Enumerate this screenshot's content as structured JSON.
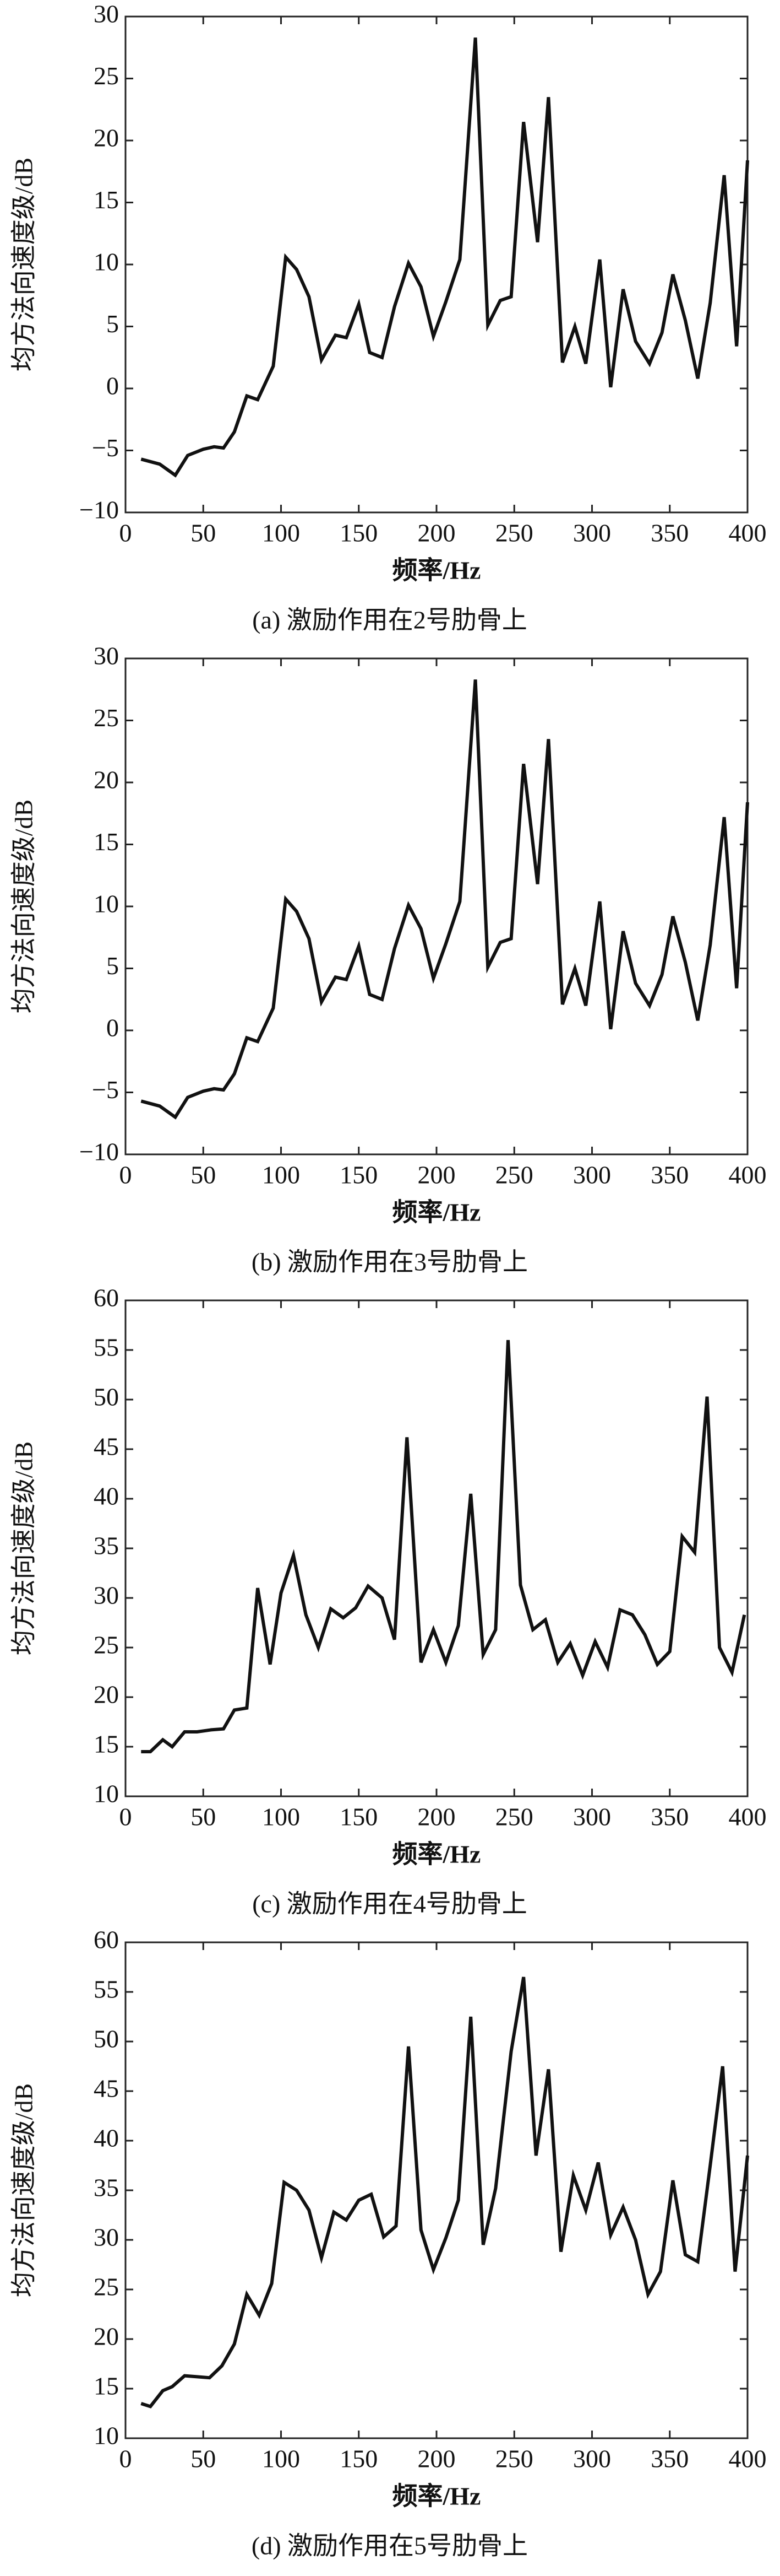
{
  "chart_data": [
    {
      "type": "line",
      "caption": "(a) 激励作用在2号肋骨上",
      "xlabel": "频率/Hz",
      "ylabel": "均方法向速度级/dB",
      "xlim": [
        0,
        400
      ],
      "xticks": [
        0,
        50,
        100,
        150,
        200,
        250,
        300,
        350,
        400
      ],
      "ylim": [
        -10,
        30
      ],
      "yticks": [
        {
          "value": -10,
          "label": "−10"
        },
        {
          "value": -5,
          "label": "−5"
        },
        0,
        5,
        10,
        15,
        20,
        25,
        30
      ],
      "color": "#111111",
      "grid": false,
      "x": [
        10,
        22,
        32,
        40,
        50,
        57,
        63,
        70,
        78,
        85,
        95,
        103,
        110,
        118,
        126,
        135,
        142,
        150,
        157,
        165,
        173,
        182,
        190,
        198,
        206,
        215,
        225,
        233,
        241,
        248,
        256,
        265,
        272,
        281,
        289,
        296,
        305,
        312,
        320,
        328,
        337,
        345,
        352,
        360,
        368,
        376,
        385,
        393,
        400
      ],
      "values": [
        -5.7,
        -6.1,
        -7.0,
        -5.4,
        -4.9,
        -4.7,
        -4.8,
        -3.5,
        -0.6,
        -0.9,
        1.8,
        10.6,
        9.6,
        7.4,
        2.3,
        4.3,
        4.1,
        6.8,
        2.9,
        2.5,
        6.6,
        10.1,
        8.2,
        4.2,
        7.0,
        10.4,
        28.3,
        5.1,
        7.1,
        7.4,
        21.5,
        11.8,
        23.5,
        2.1,
        5.0,
        2.0,
        10.4,
        0.1,
        8.0,
        3.8,
        2.0,
        4.5,
        9.2,
        5.5,
        0.8,
        6.9,
        17.2,
        3.4,
        18.4
      ]
    },
    {
      "type": "line",
      "caption": "(b) 激励作用在3号肋骨上",
      "xlabel": "频率/Hz",
      "ylabel": "均方法向速度级/dB",
      "xlim": [
        0,
        400
      ],
      "xticks": [
        0,
        50,
        100,
        150,
        200,
        250,
        300,
        350,
        400
      ],
      "ylim": [
        -10,
        30
      ],
      "yticks": [
        {
          "value": -10,
          "label": "−10"
        },
        {
          "value": -5,
          "label": "−5"
        },
        0,
        5,
        10,
        15,
        20,
        25,
        30
      ],
      "color": "#111111",
      "grid": false,
      "x": [
        10,
        22,
        32,
        40,
        50,
        57,
        63,
        70,
        78,
        85,
        95,
        103,
        110,
        118,
        126,
        135,
        142,
        150,
        157,
        165,
        173,
        182,
        190,
        198,
        206,
        215,
        225,
        233,
        241,
        248,
        256,
        265,
        272,
        281,
        289,
        296,
        305,
        312,
        320,
        328,
        337,
        345,
        352,
        360,
        368,
        376,
        385,
        393,
        400
      ],
      "values": [
        -5.7,
        -6.1,
        -7.0,
        -5.4,
        -4.9,
        -4.7,
        -4.8,
        -3.5,
        -0.6,
        -0.9,
        1.8,
        10.6,
        9.6,
        7.4,
        2.3,
        4.3,
        4.1,
        6.8,
        2.9,
        2.5,
        6.6,
        10.1,
        8.2,
        4.2,
        7.0,
        10.4,
        28.3,
        5.1,
        7.1,
        7.4,
        21.5,
        11.8,
        23.5,
        2.1,
        5.0,
        2.0,
        10.4,
        0.1,
        8.0,
        3.8,
        2.0,
        4.5,
        9.2,
        5.5,
        0.8,
        6.9,
        17.2,
        3.4,
        18.4
      ]
    },
    {
      "type": "line",
      "caption": "(c) 激励作用在4号肋骨上",
      "xlabel": "频率/Hz",
      "ylabel": "均方法向速度级/dB",
      "xlim": [
        0,
        400
      ],
      "xticks": [
        0,
        50,
        100,
        150,
        200,
        250,
        300,
        350,
        400
      ],
      "ylim": [
        10,
        60
      ],
      "yticks": [
        10,
        15,
        20,
        25,
        30,
        35,
        40,
        45,
        50,
        55,
        60
      ],
      "color": "#111111",
      "grid": false,
      "x": [
        10,
        16,
        24,
        30,
        38,
        46,
        55,
        63,
        70,
        78,
        85,
        93,
        100,
        108,
        116,
        124,
        132,
        140,
        148,
        156,
        165,
        173,
        181,
        190,
        198,
        206,
        214,
        222,
        230,
        238,
        246,
        254,
        262,
        270,
        278,
        286,
        294,
        302,
        310,
        318,
        326,
        334,
        342,
        350,
        358,
        366,
        374,
        382,
        390,
        398
      ],
      "values": [
        14.5,
        14.5,
        15.7,
        15.0,
        16.5,
        16.5,
        16.7,
        16.8,
        18.7,
        18.9,
        31.0,
        23.3,
        30.5,
        34.3,
        28.3,
        25.0,
        28.9,
        28.0,
        29.0,
        31.2,
        30.0,
        25.8,
        46.2,
        23.5,
        26.8,
        23.5,
        27.2,
        40.5,
        24.3,
        26.8,
        56.0,
        31.3,
        26.8,
        27.8,
        23.5,
        25.4,
        22.2,
        25.6,
        23.0,
        28.8,
        28.3,
        26.3,
        23.3,
        24.6,
        36.2,
        34.6,
        50.3,
        25.0,
        22.5,
        28.3
      ]
    },
    {
      "type": "line",
      "caption": "(d) 激励作用在5号肋骨上",
      "xlabel": "频率/Hz",
      "ylabel": "均方法向速度级/dB",
      "xlim": [
        0,
        400
      ],
      "xticks": [
        0,
        50,
        100,
        150,
        200,
        250,
        300,
        350,
        400
      ],
      "ylim": [
        10,
        60
      ],
      "yticks": [
        10,
        15,
        20,
        25,
        30,
        35,
        40,
        45,
        50,
        55,
        60
      ],
      "color": "#111111",
      "grid": false,
      "x": [
        10,
        16,
        24,
        30,
        38,
        46,
        54,
        62,
        70,
        78,
        86,
        94,
        102,
        110,
        118,
        126,
        134,
        142,
        150,
        158,
        166,
        174,
        182,
        190,
        198,
        206,
        214,
        222,
        230,
        238,
        248,
        256,
        264,
        272,
        280,
        288,
        296,
        304,
        312,
        320,
        328,
        336,
        344,
        352,
        360,
        368,
        376,
        384,
        392,
        400
      ],
      "values": [
        13.5,
        13.2,
        14.8,
        15.2,
        16.3,
        16.2,
        16.1,
        17.3,
        19.5,
        24.5,
        22.4,
        25.6,
        35.8,
        35.0,
        33.0,
        28.2,
        32.8,
        32.0,
        34.0,
        34.6,
        30.3,
        31.4,
        49.5,
        31.0,
        27.0,
        30.2,
        34.0,
        52.5,
        29.5,
        35.2,
        49.0,
        56.5,
        38.5,
        47.2,
        28.8,
        36.5,
        33.0,
        37.8,
        30.5,
        33.3,
        30.0,
        24.5,
        26.8,
        36.0,
        28.5,
        27.8,
        37.5,
        47.5,
        26.8,
        38.5
      ]
    }
  ]
}
